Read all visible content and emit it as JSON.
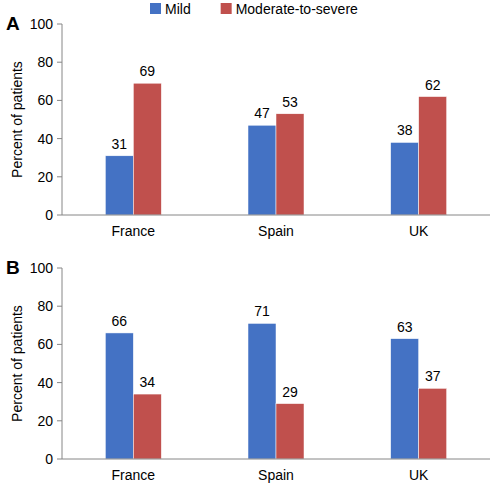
{
  "chart_data": [
    {
      "type": "bar",
      "title": "A",
      "y_label": "Percent of patients",
      "categories": [
        "France",
        "Spain",
        "UK"
      ],
      "series": [
        {
          "name": "Mild",
          "color": "#4472c4",
          "values": [
            31,
            47,
            38
          ]
        },
        {
          "name": "Moderate-to-severe",
          "color": "#c0504d",
          "values": [
            69,
            53,
            62
          ]
        }
      ],
      "ylim": [
        0,
        100
      ],
      "yticks": [
        0,
        20,
        40,
        60,
        80,
        100
      ],
      "grid": false,
      "legend": "top",
      "data_labels": true
    },
    {
      "type": "bar",
      "title": "B",
      "y_label": "Percent of patients",
      "categories": [
        "France",
        "Spain",
        "UK"
      ],
      "series": [
        {
          "color": "#4472c4",
          "values": [
            66,
            71,
            63
          ]
        },
        {
          "color": "#c0504d",
          "values": [
            34,
            29,
            37
          ]
        }
      ],
      "ylim": [
        0,
        100
      ],
      "yticks": [
        0,
        20,
        40,
        60,
        80,
        100
      ],
      "grid": false,
      "data_labels": true
    }
  ]
}
